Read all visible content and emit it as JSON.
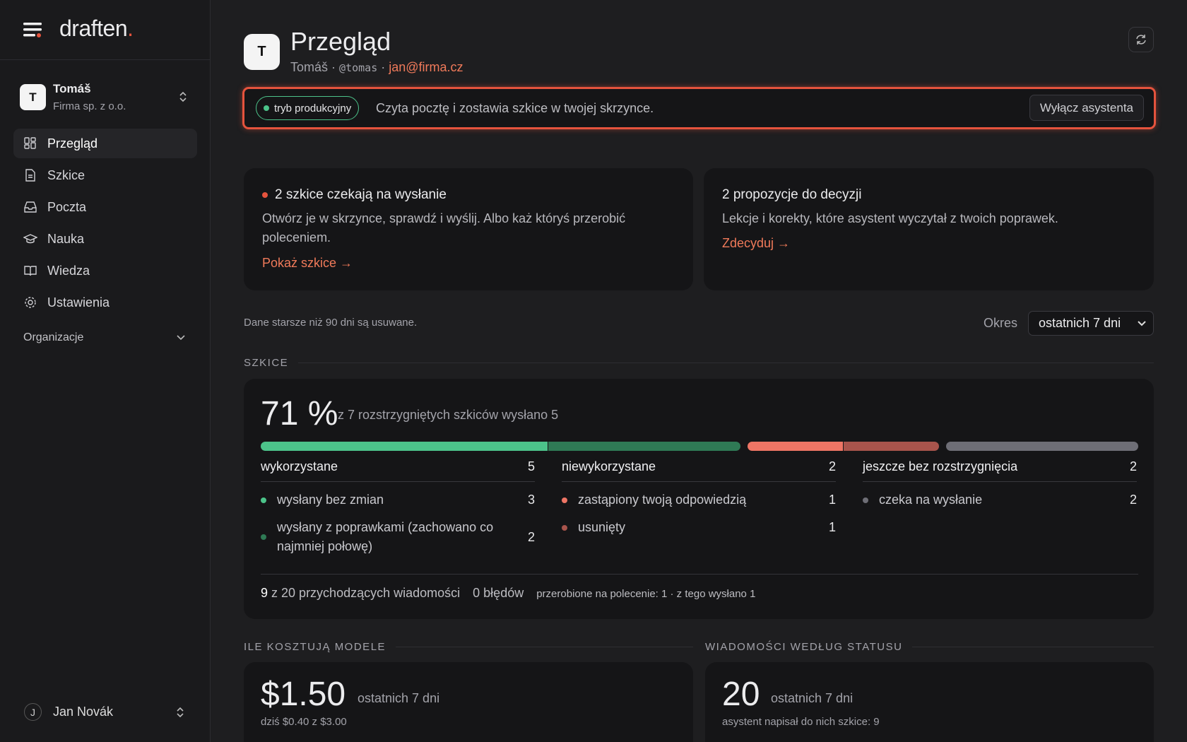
{
  "sidebar": {
    "brand": "draften",
    "brand_dot": ".",
    "workspace": {
      "avatar": "T",
      "name": "Tomáš",
      "org": "Firma sp. z o.o."
    },
    "nav": [
      "Przegląd",
      "Szkice",
      "Poczta",
      "Nauka",
      "Wiedza",
      "Ustawienia"
    ],
    "section": "Organizacje",
    "user": {
      "avatar": "J",
      "name": "Jan Novák"
    }
  },
  "header": {
    "avatar": "T",
    "title": "Przegląd",
    "name": "Tomáš",
    "separator": "·",
    "handle": "@tomas",
    "email": "jan@firma.cz"
  },
  "banner": {
    "badge": "tryb produkcyjny",
    "text": "Czyta pocztę i zostawia szkice w twojej skrzynce.",
    "button": "Wyłącz asystenta"
  },
  "cards": [
    {
      "title": "2 szkice czekają na wysłanie",
      "text": "Otwórz je w skrzynce, sprawdź i wyślij. Albo każ któryś przerobić poleceniem.",
      "link": "Pokaż szkice →"
    },
    {
      "title": "2 propozycje do decyzji",
      "text": "Lekcje i korekty, które asystent wyczytał z twoich poprawek.",
      "link": "Zdecyduj →"
    }
  ],
  "retention": "Dane starsze niż 90 dni są usuwane.",
  "period": {
    "label": "Okres",
    "value": "ostatnich 7 dni"
  },
  "drafts": {
    "heading": "SZKICE",
    "rate": "71 %",
    "summary": "z 7 rozstrzygniętych szkiców wysłano 5",
    "groups": [
      {
        "name": "wykorzystane",
        "count": 5,
        "items": [
          {
            "label": "wysłany bez zmian",
            "count": 3,
            "color": "#4cc38a"
          },
          {
            "label": "wysłany z poprawkami (zachowano co najmniej połowę)",
            "count": 2,
            "color": "#2f7a55"
          }
        ]
      },
      {
        "name": "niewykorzystane",
        "count": 2,
        "items": [
          {
            "label": "zastąpiony twoją odpowiedzią",
            "count": 1,
            "color": "#ee7565"
          },
          {
            "label": "usunięty",
            "count": 1,
            "color": "#a8544c"
          }
        ]
      },
      {
        "name": "jeszcze bez rozstrzygnięcia",
        "count": 2,
        "items": [
          {
            "label": "czeka na wysłanie",
            "count": 2,
            "color": "#6e6e76"
          }
        ]
      }
    ],
    "footer": {
      "incoming": "9",
      "incoming_text": "z 20 przychodzących wiadomości",
      "errors": "0 błędów",
      "redo": "przerobione na polecenie: 1 · z tego wysłano 1"
    }
  },
  "costs": {
    "heading": "ILE KOSZTUJĄ MODELE",
    "value": "$1.50",
    "period": "ostatnich 7 dni",
    "note": "dziś $0.40 z $3.00"
  },
  "status": {
    "heading": "WIADOMOŚCI WEDŁUG STATUSU",
    "value": "20",
    "period": "ostatnich 7 dni",
    "note": "asystent napisał do nich szkice: 9"
  }
}
